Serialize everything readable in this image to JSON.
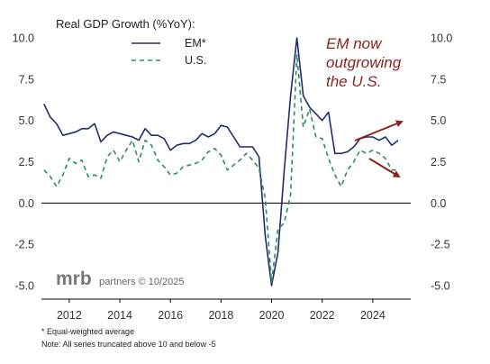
{
  "chart_data": {
    "type": "line",
    "title": "Real  GDP Growth (%YoY):",
    "xlabel": "",
    "ylabel": "",
    "xlim": [
      2010.9,
      2025.5
    ],
    "ylim": [
      -5,
      10
    ],
    "yticks": [
      "10.0",
      "7.5",
      "5.0",
      "2.5",
      "0.0",
      "-2.5",
      "-5.0"
    ],
    "yticks_right": [
      "10.0",
      "7.5",
      "5.0",
      "2.5",
      "0.0",
      "-2.5",
      "-5.0"
    ],
    "xticks": [
      "2012",
      "2014",
      "2016",
      "2018",
      "2020",
      "2022",
      "2024"
    ],
    "grid": false,
    "legend": "top-left",
    "series": [
      {
        "name": "EM*",
        "color": "#1f2d6b",
        "style": "solid",
        "x": [
          2011.0,
          2011.25,
          2011.5,
          2011.75,
          2012.0,
          2012.25,
          2012.5,
          2012.75,
          2013.0,
          2013.25,
          2013.5,
          2013.75,
          2014.0,
          2014.25,
          2014.5,
          2014.75,
          2015.0,
          2015.25,
          2015.5,
          2015.75,
          2016.0,
          2016.25,
          2016.5,
          2016.75,
          2017.0,
          2017.25,
          2017.5,
          2017.75,
          2018.0,
          2018.25,
          2018.5,
          2018.75,
          2019.0,
          2019.25,
          2019.5,
          2019.75,
          2020.0,
          2020.25,
          2020.5,
          2020.75,
          2021.0,
          2021.25,
          2021.5,
          2021.75,
          2022.0,
          2022.25,
          2022.5,
          2022.75,
          2023.0,
          2023.25,
          2023.5,
          2023.75,
          2024.0,
          2024.25,
          2024.5,
          2024.75,
          2025.0
        ],
        "values": [
          6.0,
          5.2,
          4.8,
          4.1,
          4.2,
          4.3,
          4.5,
          4.5,
          4.8,
          3.7,
          4.1,
          4.3,
          4.2,
          4.1,
          4.0,
          3.8,
          4.5,
          4.1,
          4.1,
          3.9,
          3.2,
          3.5,
          3.6,
          3.6,
          3.8,
          4.2,
          4.0,
          4.2,
          4.7,
          4.6,
          4.0,
          3.4,
          3.4,
          3.4,
          2.8,
          -2.0,
          -5.0,
          -3.0,
          2.0,
          6.5,
          10.0,
          6.5,
          5.8,
          5.4,
          5.0,
          5.5,
          3.0,
          3.0,
          3.1,
          3.4,
          3.9,
          4.0,
          4.0,
          3.8,
          4.0,
          3.5,
          3.8
        ]
      },
      {
        "name": "U.S.",
        "color": "#2e8b63",
        "style": "dashed",
        "x": [
          2011.0,
          2011.25,
          2011.5,
          2011.75,
          2012.0,
          2012.25,
          2012.5,
          2012.75,
          2013.0,
          2013.25,
          2013.5,
          2013.75,
          2014.0,
          2014.25,
          2014.5,
          2014.75,
          2015.0,
          2015.25,
          2015.5,
          2015.75,
          2016.0,
          2016.25,
          2016.5,
          2016.75,
          2017.0,
          2017.25,
          2017.5,
          2017.75,
          2018.0,
          2018.25,
          2018.5,
          2018.75,
          2019.0,
          2019.25,
          2019.5,
          2019.75,
          2020.0,
          2020.25,
          2020.5,
          2020.75,
          2021.0,
          2021.25,
          2021.5,
          2021.75,
          2022.0,
          2022.25,
          2022.5,
          2022.75,
          2023.0,
          2023.25,
          2023.5,
          2023.75,
          2024.0,
          2024.25,
          2024.5,
          2024.75,
          2025.0
        ],
        "values": [
          2.0,
          1.6,
          1.0,
          1.7,
          2.7,
          2.4,
          2.6,
          1.6,
          1.7,
          1.5,
          2.8,
          3.2,
          2.5,
          3.2,
          3.8,
          2.5,
          3.8,
          3.5,
          2.6,
          2.2,
          1.7,
          1.8,
          2.2,
          2.3,
          2.4,
          2.6,
          3.1,
          3.3,
          2.9,
          2.0,
          2.3,
          2.6,
          3.0,
          2.6,
          2.1,
          0.3,
          -4.8,
          -1.6,
          -1.2,
          0.5,
          9.0,
          4.6,
          5.7,
          4.0,
          3.9,
          2.7,
          1.7,
          1.0,
          2.0,
          2.5,
          3.2,
          3.0,
          3.2,
          3.0,
          2.7,
          2.0,
          2.0
        ]
      }
    ],
    "annotations": [
      {
        "text": "EM now",
        "color": "#8b2323"
      },
      {
        "text": "outgrowing",
        "color": "#8b2323"
      },
      {
        "text": "the U.S.",
        "color": "#8b2323"
      }
    ]
  },
  "watermark": {
    "brand": "mrb",
    "suffix": "partners © 10/2025"
  },
  "footnotes": [
    "* Equal-weighted average",
    "Note: All series truncated above 10 and below -5"
  ]
}
